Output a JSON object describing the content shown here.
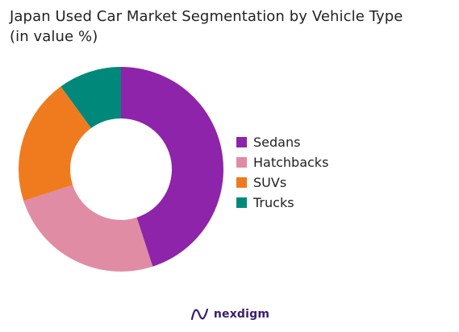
{
  "chart_data": {
    "type": "pie",
    "title_line1": "Japan Used Car Market Segmentation by Vehicle Type",
    "title_line2": "(in value %)",
    "categories": [
      "Sedans",
      "Hatchbacks",
      "SUVs",
      "Trucks"
    ],
    "values": [
      45,
      25,
      20,
      10
    ],
    "colors": [
      "#8e24aa",
      "#e08ca4",
      "#f07b1f",
      "#00897b"
    ],
    "donut": true,
    "legend_position": "right"
  },
  "footer": {
    "brand": "nexdigm",
    "logo": "nexdigm-logo-icon"
  }
}
